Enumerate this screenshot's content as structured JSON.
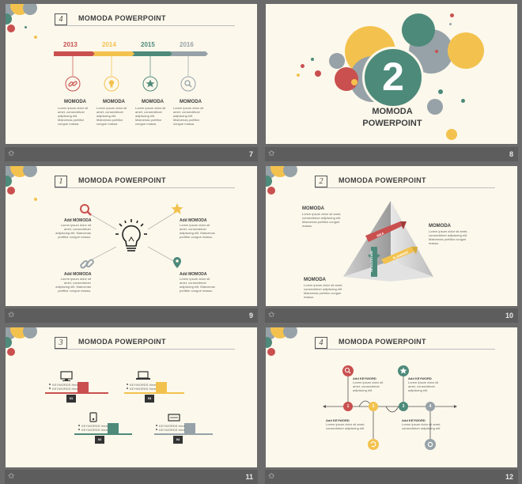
{
  "colors": {
    "red": "#c9504f",
    "yellow": "#f3c24e",
    "teal": "#4d8a7a",
    "gray": "#97a2a8",
    "bg": "#fcf8ec",
    "bar": "#5d5d5d"
  },
  "slides": [
    {
      "number": "7",
      "section": "4",
      "title": "MOMODA POWERPOINT",
      "years": [
        "2013",
        "2014",
        "2015",
        "2016"
      ],
      "icons": [
        "link-icon",
        "lightbulb-icon",
        "star-icon",
        "search-icon"
      ],
      "items": [
        {
          "name": "MOMODA",
          "text": "Lorem ipsum dolor sit amet, consectetuer adipiscing elit. Maecenas porttitor congue massa."
        },
        {
          "name": "MOMODA",
          "text": "Lorem ipsum dolor sit amet, consectetuer adipiscing elit. Maecenas porttitor congue massa."
        },
        {
          "name": "MOMODA",
          "text": "Lorem ipsum dolor sit amet, consectetuer adipiscing elit. Maecenas porttitor congue massa."
        },
        {
          "name": "MOMODA",
          "text": "Lorem ipsum dolor sit amet, consectetuer adipiscing elit. Maecenas porttitor congue massa."
        }
      ]
    },
    {
      "number": "8",
      "big_number": "2",
      "title_line1": "MOMODA",
      "title_line2": "POWERPOINT"
    },
    {
      "number": "9",
      "section": "1",
      "title": "MOMODA POWERPOINT",
      "items": [
        {
          "name": "Add MOMODA",
          "text": "Lorem ipsum dolor sit amet, consectetuer adipiscing elit. Maecenas porttitor congue massa."
        },
        {
          "name": "Add MOMODA",
          "text": "Lorem ipsum dolor sit amet, consectetuer adipiscing elit. Maecenas porttitor congue massa."
        },
        {
          "name": "Add MOMODA",
          "text": "Lorem ipsum dolor sit amet, consectetuer adipiscing elit. Maecenas porttitor congue massa."
        },
        {
          "name": "Add MOMODA",
          "text": "Lorem ipsum dolor sit amet, consectetuer adipiscing elit. Maecenas porttitor congue massa."
        }
      ]
    },
    {
      "number": "10",
      "section": "2",
      "title": "MOMODA POWERPOINT",
      "items": [
        {
          "name": "MOMODA",
          "text": "Lorem ipsum dolor sit amet, consectetuer adipiscing elit. Maecenas porttitor congue massa."
        },
        {
          "name": "MOMODA",
          "text": "Lorem ipsum dolor sit amet, consectetuer adipiscing elit. Maecenas porttitor congue massa."
        },
        {
          "name": "MOMODA",
          "text": "Lorem ipsum dolor sit amet, consectetuer adipiscing elit. Maecenas porttitor congue massa."
        }
      ],
      "arrows": [
        "IDEA",
        "PLANNING",
        "REALIZATION"
      ]
    },
    {
      "number": "11",
      "section": "3",
      "title": "MOMODA POWERPOINT",
      "steps": [
        "01",
        "02",
        "03",
        "04"
      ],
      "bullet": "KEYWORDS Here"
    },
    {
      "number": "12",
      "section": "4",
      "title": "MOMODA POWERPOINT",
      "steps": [
        "1",
        "2",
        "3",
        "4"
      ],
      "label": "Add KEYWORD",
      "text": "Lorem ipsum dolor sit amet, consectetuer adipiscing elit."
    }
  ]
}
